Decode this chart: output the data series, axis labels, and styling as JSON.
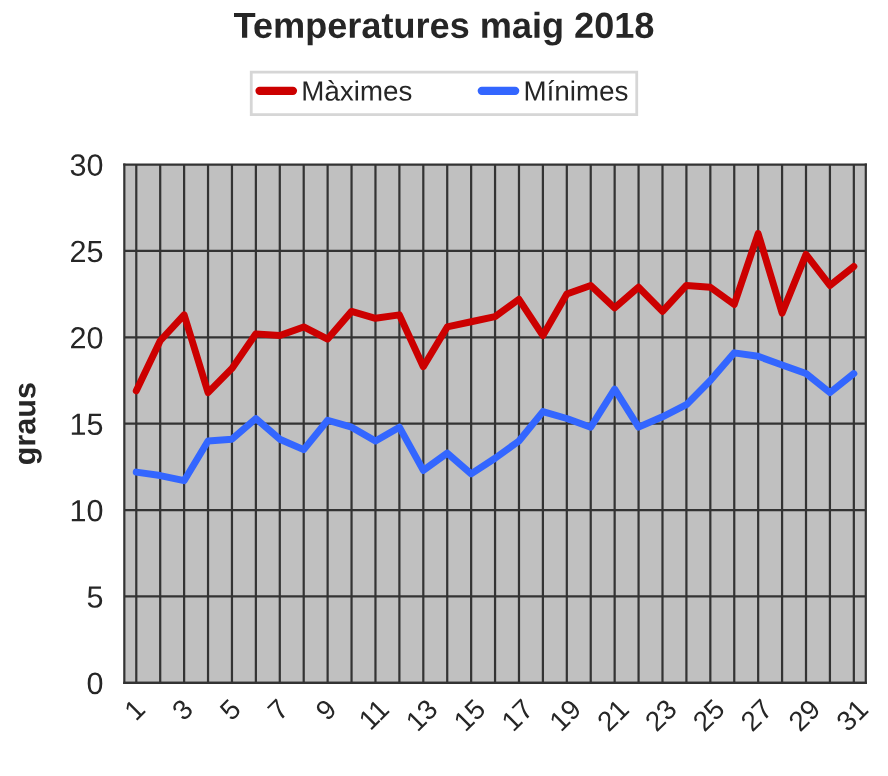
{
  "chart_data": {
    "type": "line",
    "title": "Temperatures maig 2018",
    "ylabel": "graus",
    "categories": [
      "1",
      null,
      "3",
      null,
      "5",
      null,
      "7",
      null,
      "9",
      null,
      "11",
      null,
      "13",
      null,
      "15",
      null,
      "17",
      null,
      "19",
      null,
      "21",
      null,
      "23",
      null,
      "25",
      null,
      "27",
      null,
      "29",
      null,
      "31"
    ],
    "series": [
      {
        "name": "Màximes",
        "color": "#cc0000",
        "values": [
          16.9,
          19.8,
          21.3,
          16.8,
          18.2,
          20.2,
          20.1,
          20.6,
          19.9,
          21.5,
          21.1,
          21.3,
          18.3,
          20.6,
          20.9,
          21.2,
          22.2,
          20.1,
          22.5,
          23.0,
          21.7,
          22.9,
          21.5,
          23.0,
          22.9,
          21.9,
          26.0,
          21.4,
          24.8,
          23.0,
          24.1
        ]
      },
      {
        "name": "Mínimes",
        "color": "#3366ff",
        "values": [
          12.2,
          12.0,
          11.7,
          14.0,
          14.1,
          15.3,
          14.1,
          13.5,
          15.2,
          14.8,
          14.0,
          14.8,
          12.3,
          13.3,
          12.1,
          13.0,
          14.0,
          15.7,
          15.3,
          14.8,
          17.0,
          14.8,
          15.4,
          16.1,
          17.5,
          19.1,
          18.9,
          18.4,
          17.9,
          16.8,
          17.9
        ]
      }
    ],
    "ylim": [
      0,
      30
    ],
    "yticks": [
      0,
      5,
      10,
      15,
      20,
      25,
      30
    ],
    "grid": true,
    "legend": "top",
    "marker": "none",
    "line_style": "solid"
  }
}
